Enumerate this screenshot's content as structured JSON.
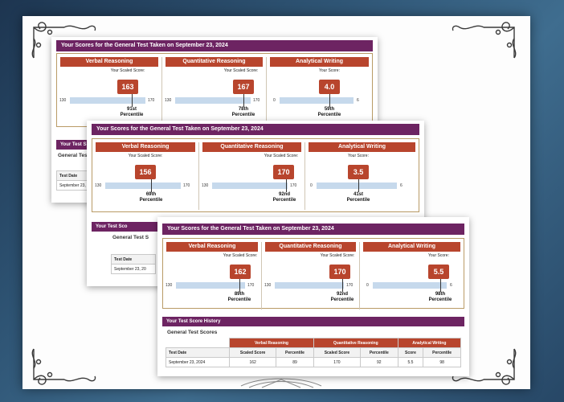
{
  "reports": [
    {
      "header": "Your Scores for the General Test Taken on September 23, 2024",
      "sections": [
        {
          "title": "Verbal Reasoning",
          "label": "Your Scaled Score:",
          "score": "163",
          "min": "130",
          "max": "170",
          "percentile_num": "91st",
          "percentile_word": "Percentile"
        },
        {
          "title": "Quantitative Reasoning",
          "label": "Your Scaled Score:",
          "score": "167",
          "min": "130",
          "max": "170",
          "percentile_num": "78th",
          "percentile_word": "Percentile"
        },
        {
          "title": "Analytical Writing",
          "label": "Your Score:",
          "score": "4.0",
          "min": "0",
          "max": "6",
          "percentile_num": "59th",
          "percentile_word": "Percentile"
        }
      ],
      "history": {
        "banner": "Your Test S",
        "subtitle": "General Test",
        "col_header": "Test Date",
        "date": "September 23,"
      }
    },
    {
      "header": "Your Scores for the General Test Taken on September 23, 2024",
      "sections": [
        {
          "title": "Verbal Reasoning",
          "label": "Your Scaled Score:",
          "score": "156",
          "min": "130",
          "max": "170",
          "percentile_num": "69th",
          "percentile_word": "Percentile"
        },
        {
          "title": "Quantitative Reasoning",
          "label": "Your Scaled Score:",
          "score": "170",
          "min": "130",
          "max": "170",
          "percentile_num": "92nd",
          "percentile_word": "Percentile"
        },
        {
          "title": "Analytical Writing",
          "label": "Your Score:",
          "score": "3.5",
          "min": "0",
          "max": "6",
          "percentile_num": "41st",
          "percentile_word": "Percentile"
        }
      ],
      "history": {
        "banner": "Your Test Sco",
        "subtitle": "General Test S",
        "col_header": "Test Date",
        "date": "September 23, 20"
      }
    },
    {
      "header": "Your Scores for the General Test Taken on September 23, 2024",
      "sections": [
        {
          "title": "Verbal Reasoning",
          "label": "Your Scaled Score:",
          "score": "162",
          "min": "130",
          "max": "170",
          "percentile_num": "89th",
          "percentile_word": "Percentile"
        },
        {
          "title": "Quantitative Reasoning",
          "label": "Your Scaled Score:",
          "score": "170",
          "min": "130",
          "max": "170",
          "percentile_num": "92nd",
          "percentile_word": "Percentile"
        },
        {
          "title": "Analytical Writing",
          "label": "Your Score:",
          "score": "5.5",
          "min": "0",
          "max": "6",
          "percentile_num": "98th",
          "percentile_word": "Percentile"
        }
      ],
      "history": {
        "banner": "Your Test Score History",
        "subtitle": "General Test Scores",
        "groups": [
          "Verbal Reasoning",
          "Quantitative Reasoning",
          "Analytical Writing"
        ],
        "columns": [
          "Test Date",
          "Scaled Score",
          "Percentile",
          "Scaled Score",
          "Percentile",
          "Score",
          "Percentile"
        ],
        "row": [
          "September 23, 2024",
          "162",
          "89",
          "170",
          "92",
          "5.5",
          "98"
        ]
      }
    }
  ],
  "colors": {
    "banner": "#6d2462",
    "section_header": "#b8452d",
    "score_badge": "#b8452d",
    "bar": "#c6d9ec",
    "backdrop": "#2f5575"
  },
  "icons": [
    "ornament-corner-icon",
    "medallion-icon"
  ]
}
